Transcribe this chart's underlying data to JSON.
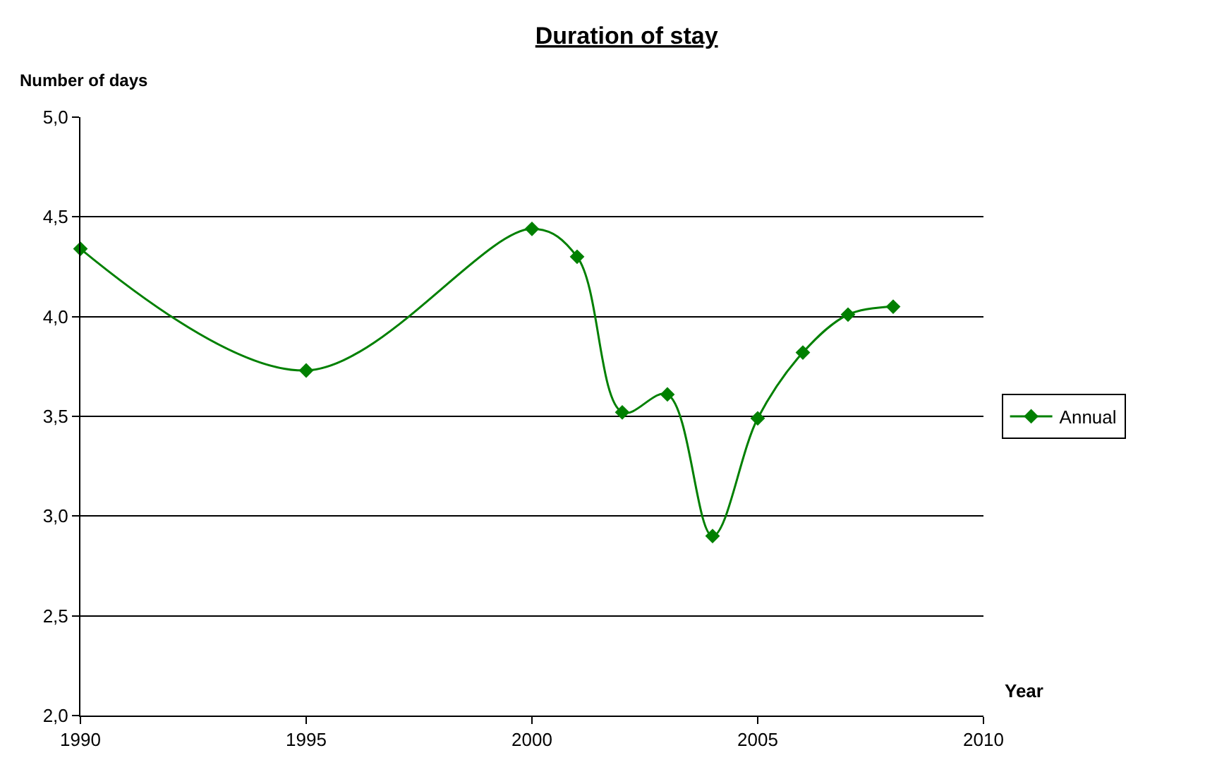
{
  "chart_data": {
    "type": "line",
    "title": "Duration of stay",
    "xlabel": "Year",
    "ylabel": "Number of days",
    "x": [
      1990,
      1995,
      2000,
      2001,
      2002,
      2003,
      2004,
      2005,
      2006,
      2007,
      2008
    ],
    "series": [
      {
        "name": "Annual",
        "color": "#008000",
        "values": [
          4.34,
          3.73,
          4.44,
          4.3,
          3.52,
          3.61,
          2.9,
          3.49,
          3.82,
          4.01,
          4.05
        ]
      }
    ],
    "xlim": [
      1990,
      2010
    ],
    "xticks": [
      1990,
      1995,
      2000,
      2005,
      2010
    ],
    "ylim": [
      2,
      5
    ],
    "yticks": [
      {
        "value": 2,
        "label": "2,0"
      },
      {
        "value": 2.5,
        "label": "2,5"
      },
      {
        "value": 3,
        "label": "3,0"
      },
      {
        "value": 3.5,
        "label": "3,5"
      },
      {
        "value": 4,
        "label": "4,0"
      },
      {
        "value": 4.5,
        "label": "4,5"
      },
      {
        "value": 5,
        "label": "5,0"
      }
    ],
    "grid": "y",
    "legend": "right",
    "marker": "diamond",
    "line_style": "solid"
  }
}
